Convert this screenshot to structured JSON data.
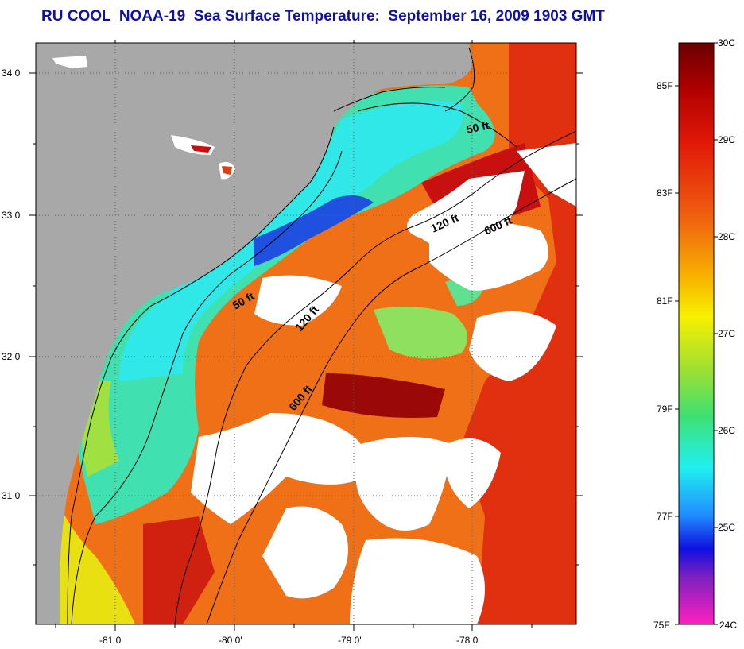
{
  "title": "RU COOL  NOAA-19  Sea Surface Temperature:  September 16, 2009 1903 GMT",
  "lon_ticks": [
    "-81 0'",
    "-80 0'",
    "-79 0'",
    "-78 0'"
  ],
  "lat_ticks": [
    "34 0'",
    "33 0'",
    "32 0'",
    "31 0'"
  ],
  "contours": [
    {
      "label": "50 ft"
    },
    {
      "label": "120 ft"
    },
    {
      "label": "600 ft"
    },
    {
      "label": "50 ft"
    },
    {
      "label": "120 ft"
    },
    {
      "label": "600 ft"
    }
  ],
  "colorbar": {
    "celsius_labels": [
      "30C",
      "29C",
      "28C",
      "27C",
      "26C",
      "25C",
      "24C"
    ],
    "fahrenheit_labels": [
      "85F",
      "83F",
      "81F",
      "79F",
      "77F",
      "75F"
    ],
    "celsius_range": [
      24,
      30
    ],
    "fahrenheit_range": [
      75,
      86
    ]
  },
  "colors": {
    "land": "#a8a8a8",
    "cloud": "#ffffff",
    "title": "#1010a8",
    "warm": "#e02010",
    "cool": "#30e0e0"
  }
}
